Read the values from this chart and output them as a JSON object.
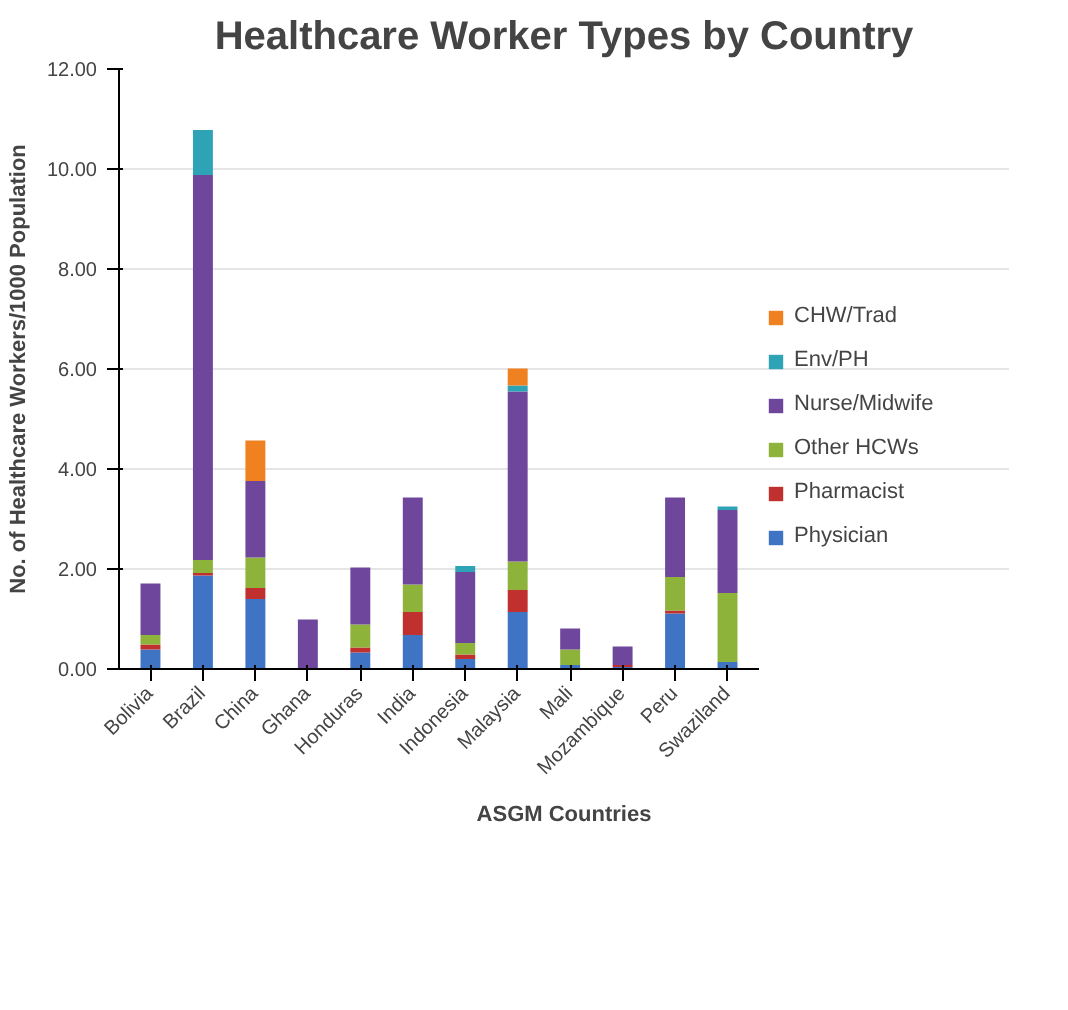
{
  "chart_data": {
    "type": "bar",
    "stacked": true,
    "title": "Healthcare Worker Types by Country",
    "xlabel": "ASGM Countries",
    "ylabel": "No. of Healthcare Workers/1000 Population",
    "categories": [
      "Bolivia",
      "Brazil",
      "China",
      "Ghana",
      "Honduras",
      "India",
      "Indonesia",
      "Malaysia",
      "Mali",
      "Mozambique",
      "Peru",
      "Swaziland"
    ],
    "ylim": [
      0,
      12
    ],
    "yticks": [
      {
        "value": 0,
        "label": "0.00"
      },
      {
        "value": 2,
        "label": "2.00"
      },
      {
        "value": 4,
        "label": "4.00"
      },
      {
        "value": 6,
        "label": "6.00"
      },
      {
        "value": 8,
        "label": "8.00"
      },
      {
        "value": 10,
        "label": "10.00"
      },
      {
        "value": 12,
        "label": "12.00"
      }
    ],
    "grid": "y",
    "legend": "right",
    "series": [
      {
        "name": "Physician",
        "color": "#3f74c4",
        "values": [
          0.39,
          1.87,
          1.4,
          null,
          0.33,
          0.68,
          0.2,
          1.14,
          0.08,
          0.04,
          1.11,
          0.14
        ]
      },
      {
        "name": "Pharmacist",
        "color": "#c0302e",
        "values": [
          0.1,
          0.05,
          0.22,
          0,
          0.1,
          0.46,
          0.09,
          0.44,
          0,
          0.04,
          0.06,
          0
        ]
      },
      {
        "name": "Other HCWs",
        "color": "#8db33b",
        "values": [
          0.19,
          0.26,
          0.61,
          0,
          0.46,
          0.55,
          0.23,
          0.57,
          0.31,
          0,
          0.67,
          1.38
        ]
      },
      {
        "name": "Nurse/Midwife",
        "color": "#6e479c",
        "values": [
          1.03,
          7.7,
          1.53,
          0.99,
          1.14,
          1.74,
          1.42,
          3.4,
          0.42,
          0.37,
          1.59,
          1.66
        ]
      },
      {
        "name": "Env/PH",
        "color": "#2fa3b6",
        "values": [
          0,
          0.9,
          0,
          0,
          0,
          0,
          0.12,
          0.12,
          0,
          0,
          0,
          0.07
        ]
      },
      {
        "name": "CHW/Trad",
        "color": "#ef8120",
        "values": [
          0,
          0,
          0.81,
          0,
          0,
          0,
          0,
          0.34,
          0,
          0,
          0,
          0
        ]
      }
    ]
  }
}
